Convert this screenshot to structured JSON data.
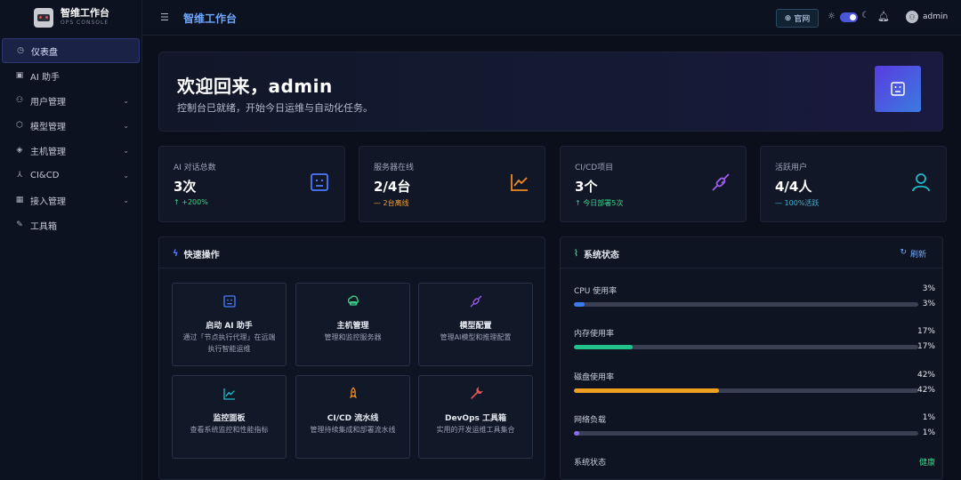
{
  "brand": {
    "title": "智维工作台",
    "subtitle": "OPS CONSOLE"
  },
  "sidebar": {
    "items": [
      {
        "label": "仪表盘",
        "icon": "dashboard-icon",
        "active": true
      },
      {
        "label": "AI 助手",
        "icon": "robot-icon"
      },
      {
        "label": "用户管理",
        "icon": "user-icon",
        "expandable": true
      },
      {
        "label": "模型管理",
        "icon": "cube-icon",
        "expandable": true
      },
      {
        "label": "主机管理",
        "icon": "server-icon",
        "expandable": true
      },
      {
        "label": "CI&CD",
        "icon": "pipeline-icon",
        "expandable": true
      },
      {
        "label": "接入管理",
        "icon": "grid-icon",
        "expandable": true
      },
      {
        "label": "工具箱",
        "icon": "wrench-icon"
      }
    ]
  },
  "header": {
    "title": "智维工作台",
    "site_label": "官网",
    "user": "admin"
  },
  "hero": {
    "title": "欢迎回来，admin",
    "subtitle": "控制台已就绪，开始今日运维与自动化任务。"
  },
  "stats": [
    {
      "label": "AI 对话总数",
      "value": "3次",
      "trend": "↑ +200%",
      "trend_color": "#3bd28a",
      "icon": "robot-icon",
      "icon_color": "#4b7bff"
    },
    {
      "label": "服务器在线",
      "value": "2/4台",
      "trend": "— 2台离线",
      "trend_color": "#f0a030",
      "icon": "line-chart-icon",
      "icon_color": "#f08a24"
    },
    {
      "label": "CI/CD项目",
      "value": "3个",
      "trend": "↑ 今日部署5次",
      "trend_color": "#3bd28a",
      "icon": "link-icon",
      "icon_color": "#a05cf0"
    },
    {
      "label": "活跃用户",
      "value": "4/4人",
      "trend": "— 100%活跃",
      "trend_color": "#3bb8d8",
      "icon": "user-icon",
      "icon_color": "#22b8c8"
    }
  ],
  "quick": {
    "title": "快速操作",
    "actions": [
      {
        "title": "启动 AI 助手",
        "desc": "通过「节点执行代理」在远端执行智能运维",
        "icon": "robot-icon",
        "color": "#4b7bff"
      },
      {
        "title": "主机管理",
        "desc": "管理和监控服务器",
        "icon": "cloud-server-icon",
        "color": "#3bd28a"
      },
      {
        "title": "模型配置",
        "desc": "管理AI模型和推理配置",
        "icon": "link-icon",
        "color": "#a05cf0"
      },
      {
        "title": "监控面板",
        "desc": "查看系统监控和性能指标",
        "icon": "line-chart-icon",
        "color": "#22b8c8"
      },
      {
        "title": "CI/CD 流水线",
        "desc": "管理持续集成和部署流水线",
        "icon": "rocket-icon",
        "color": "#f08a24"
      },
      {
        "title": "DevOps 工具箱",
        "desc": "实用的开发运维工具集合",
        "icon": "wrench-icon",
        "color": "#e85a5a"
      }
    ]
  },
  "system": {
    "title": "系统状态",
    "refresh_label": "刷新",
    "metrics": [
      {
        "name": "CPU 使用率",
        "value": "3%",
        "percent": 3,
        "color": "#3b7bf0"
      },
      {
        "name": "内存使用率",
        "value": "17%",
        "percent": 17,
        "color": "#22c08a"
      },
      {
        "name": "磁盘使用率",
        "value": "42%",
        "percent": 42,
        "color": "#f0a020"
      },
      {
        "name": "网络负载",
        "value": "1%",
        "percent": 1,
        "color": "#8a6cf0"
      }
    ],
    "status_label": "系统状态",
    "status_value": "健康"
  }
}
